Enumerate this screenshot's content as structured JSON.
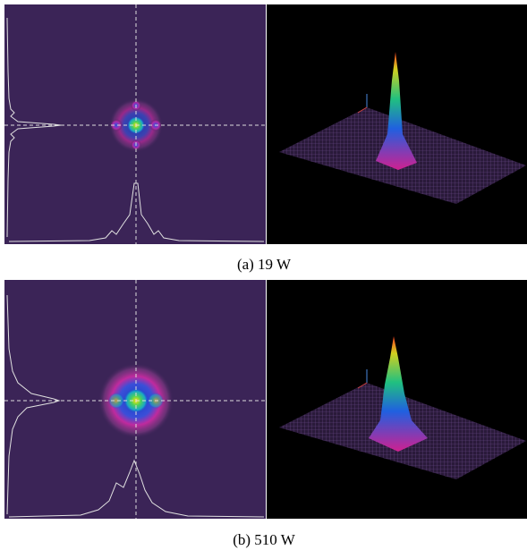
{
  "figure": {
    "panels": [
      {
        "caption": "(a) 19 W"
      },
      {
        "caption": "(b) 510 W"
      }
    ]
  }
}
